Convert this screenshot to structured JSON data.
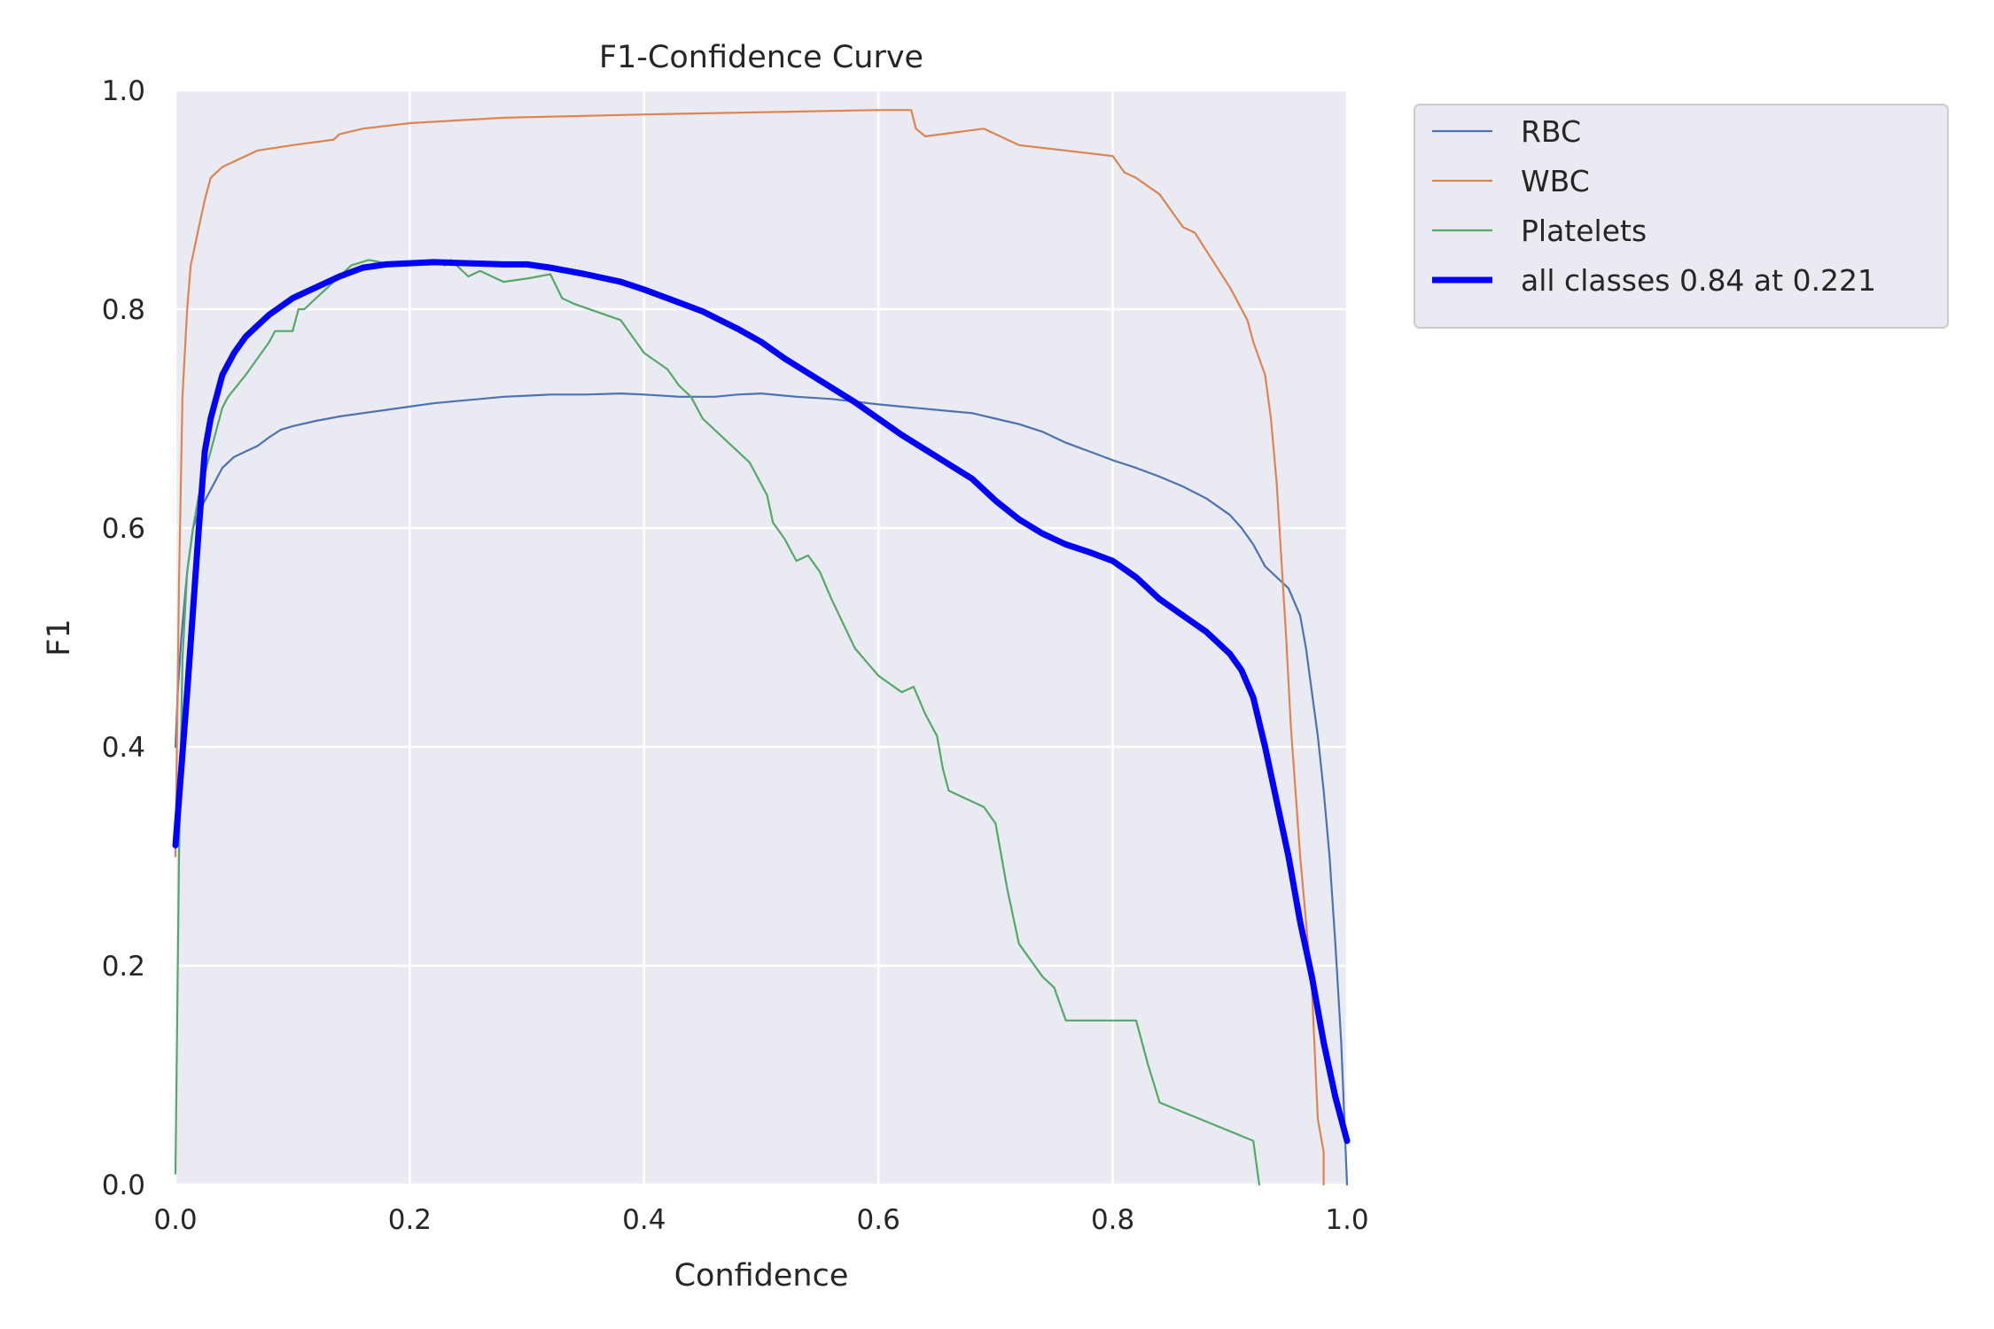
{
  "chart_data": {
    "type": "line",
    "title": "F1-Confidence Curve",
    "xlabel": "Confidence",
    "ylabel": "F1",
    "xlim": [
      0,
      1
    ],
    "ylim": [
      0,
      1
    ],
    "xticks": [
      "0.0",
      "0.2",
      "0.4",
      "0.6",
      "0.8",
      "1.0"
    ],
    "yticks": [
      "0.0",
      "0.2",
      "0.4",
      "0.6",
      "0.8",
      "1.0"
    ],
    "grid": true,
    "legend": "outside-top-right",
    "series": [
      {
        "name": "RBC",
        "color": "#4c72b0",
        "x": [
          0.0,
          0.002,
          0.005,
          0.01,
          0.015,
          0.02,
          0.025,
          0.03,
          0.035,
          0.04,
          0.05,
          0.06,
          0.07,
          0.08,
          0.09,
          0.1,
          0.12,
          0.14,
          0.16,
          0.18,
          0.2,
          0.22,
          0.24,
          0.26,
          0.28,
          0.3,
          0.32,
          0.35,
          0.38,
          0.4,
          0.43,
          0.46,
          0.48,
          0.5,
          0.53,
          0.56,
          0.6,
          0.63,
          0.66,
          0.68,
          0.7,
          0.72,
          0.74,
          0.76,
          0.78,
          0.8,
          0.82,
          0.84,
          0.86,
          0.88,
          0.9,
          0.91,
          0.92,
          0.93,
          0.94,
          0.95,
          0.96,
          0.965,
          0.97,
          0.975,
          0.98,
          0.985,
          0.99,
          0.995,
          1.0
        ],
        "y": [
          0.4,
          0.45,
          0.5,
          0.56,
          0.6,
          0.615,
          0.625,
          0.635,
          0.645,
          0.655,
          0.665,
          0.67,
          0.675,
          0.683,
          0.69,
          0.693,
          0.698,
          0.702,
          0.705,
          0.708,
          0.711,
          0.714,
          0.716,
          0.718,
          0.72,
          0.721,
          0.722,
          0.722,
          0.723,
          0.722,
          0.72,
          0.72,
          0.722,
          0.723,
          0.72,
          0.718,
          0.713,
          0.71,
          0.707,
          0.705,
          0.7,
          0.695,
          0.688,
          0.678,
          0.67,
          0.662,
          0.655,
          0.647,
          0.638,
          0.627,
          0.612,
          0.6,
          0.585,
          0.565,
          0.555,
          0.545,
          0.52,
          0.49,
          0.45,
          0.41,
          0.36,
          0.3,
          0.22,
          0.13,
          0.0
        ]
      },
      {
        "name": "WBC",
        "color": "#dd8452",
        "x": [
          0.0,
          0.003,
          0.006,
          0.01,
          0.013,
          0.016,
          0.02,
          0.025,
          0.03,
          0.035,
          0.04,
          0.05,
          0.06,
          0.07,
          0.1,
          0.135,
          0.14,
          0.16,
          0.2,
          0.28,
          0.4,
          0.5,
          0.6,
          0.628,
          0.632,
          0.64,
          0.69,
          0.72,
          0.8,
          0.81,
          0.82,
          0.84,
          0.86,
          0.87,
          0.9,
          0.91,
          0.915,
          0.92,
          0.93,
          0.935,
          0.94,
          0.948,
          0.952,
          0.96,
          0.97,
          0.975,
          0.98,
          0.98
        ],
        "y": [
          0.3,
          0.55,
          0.72,
          0.8,
          0.84,
          0.855,
          0.875,
          0.9,
          0.92,
          0.925,
          0.93,
          0.935,
          0.94,
          0.945,
          0.95,
          0.955,
          0.96,
          0.965,
          0.97,
          0.975,
          0.978,
          0.98,
          0.982,
          0.982,
          0.965,
          0.958,
          0.965,
          0.95,
          0.94,
          0.925,
          0.92,
          0.905,
          0.875,
          0.87,
          0.82,
          0.8,
          0.79,
          0.77,
          0.74,
          0.7,
          0.64,
          0.5,
          0.42,
          0.3,
          0.18,
          0.06,
          0.03,
          0.0
        ]
      },
      {
        "name": "Platelets",
        "color": "#55a868",
        "x": [
          0.0,
          0.003,
          0.006,
          0.01,
          0.015,
          0.02,
          0.025,
          0.03,
          0.035,
          0.04,
          0.045,
          0.06,
          0.08,
          0.085,
          0.1,
          0.105,
          0.11,
          0.12,
          0.13,
          0.14,
          0.15,
          0.165,
          0.18,
          0.2,
          0.22,
          0.23,
          0.235,
          0.25,
          0.26,
          0.28,
          0.3,
          0.32,
          0.33,
          0.34,
          0.38,
          0.4,
          0.42,
          0.43,
          0.44,
          0.45,
          0.47,
          0.49,
          0.5,
          0.505,
          0.51,
          0.52,
          0.53,
          0.54,
          0.55,
          0.56,
          0.58,
          0.6,
          0.62,
          0.63,
          0.64,
          0.65,
          0.655,
          0.66,
          0.69,
          0.7,
          0.71,
          0.72,
          0.73,
          0.74,
          0.75,
          0.76,
          0.82,
          0.83,
          0.84,
          0.92,
          0.925
        ],
        "y": [
          0.01,
          0.3,
          0.48,
          0.56,
          0.6,
          0.63,
          0.65,
          0.67,
          0.69,
          0.71,
          0.72,
          0.74,
          0.77,
          0.78,
          0.78,
          0.8,
          0.8,
          0.81,
          0.82,
          0.83,
          0.84,
          0.845,
          0.842,
          0.843,
          0.845,
          0.84,
          0.845,
          0.83,
          0.835,
          0.825,
          0.828,
          0.832,
          0.81,
          0.805,
          0.79,
          0.76,
          0.745,
          0.73,
          0.72,
          0.7,
          0.68,
          0.66,
          0.64,
          0.63,
          0.605,
          0.59,
          0.57,
          0.575,
          0.56,
          0.535,
          0.49,
          0.465,
          0.45,
          0.455,
          0.43,
          0.41,
          0.38,
          0.36,
          0.345,
          0.33,
          0.27,
          0.22,
          0.205,
          0.19,
          0.18,
          0.15,
          0.15,
          0.11,
          0.075,
          0.04,
          0.0
        ]
      },
      {
        "name": "all classes 0.84 at 0.221",
        "color": "#0000ff",
        "bold": true,
        "x": [
          0.0,
          0.01,
          0.02,
          0.025,
          0.03,
          0.04,
          0.05,
          0.06,
          0.07,
          0.08,
          0.1,
          0.12,
          0.14,
          0.16,
          0.18,
          0.2,
          0.221,
          0.25,
          0.28,
          0.3,
          0.32,
          0.35,
          0.38,
          0.4,
          0.42,
          0.45,
          0.48,
          0.5,
          0.52,
          0.55,
          0.58,
          0.6,
          0.62,
          0.65,
          0.68,
          0.7,
          0.72,
          0.74,
          0.76,
          0.78,
          0.8,
          0.82,
          0.84,
          0.86,
          0.88,
          0.9,
          0.91,
          0.92,
          0.93,
          0.94,
          0.95,
          0.96,
          0.97,
          0.98,
          0.99,
          1.0
        ],
        "y": [
          0.31,
          0.45,
          0.6,
          0.67,
          0.7,
          0.74,
          0.76,
          0.775,
          0.785,
          0.795,
          0.81,
          0.82,
          0.83,
          0.838,
          0.841,
          0.842,
          0.843,
          0.842,
          0.841,
          0.841,
          0.838,
          0.832,
          0.825,
          0.818,
          0.81,
          0.798,
          0.782,
          0.77,
          0.755,
          0.735,
          0.715,
          0.7,
          0.685,
          0.665,
          0.645,
          0.625,
          0.608,
          0.595,
          0.585,
          0.578,
          0.57,
          0.555,
          0.535,
          0.52,
          0.505,
          0.485,
          0.47,
          0.445,
          0.4,
          0.35,
          0.3,
          0.24,
          0.19,
          0.13,
          0.08,
          0.04
        ]
      }
    ]
  }
}
